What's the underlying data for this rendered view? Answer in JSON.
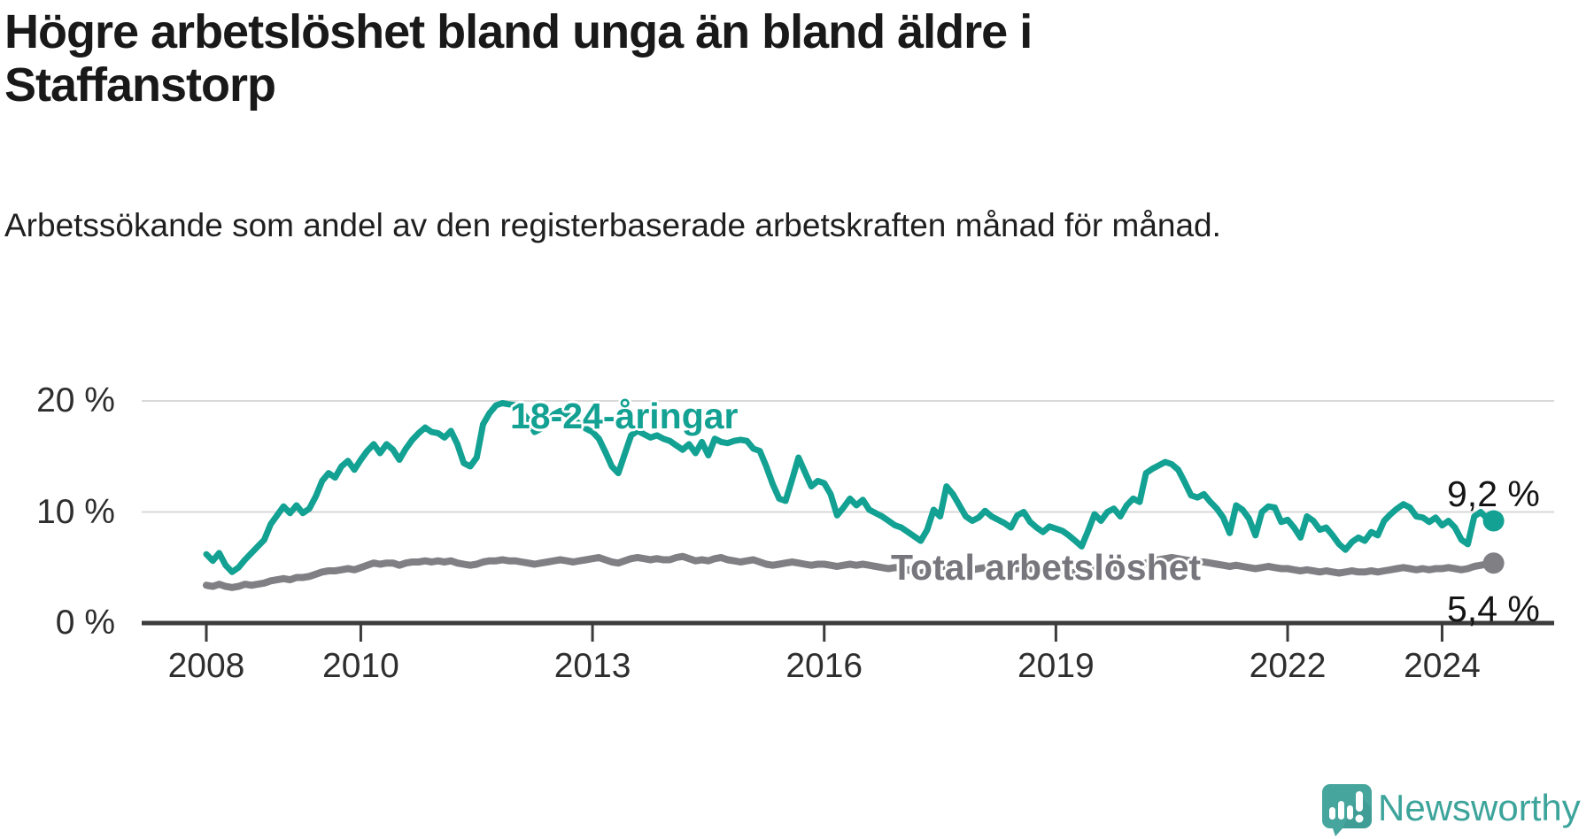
{
  "title": "Högre arbetslöshet bland unga än bland äldre i Staffanstorp",
  "subtitle": "Arbetssökande som andel av den registerbaserade arbetskraften månad för månad.",
  "branding": {
    "logo_text": "Newsworthy",
    "logo_icon": "newsworthy-speech-bubble-chart-icon",
    "logo_color": "#46a69d"
  },
  "colors": {
    "young_series": "#12a192",
    "total_series": "#7f7f84",
    "gridline": "#d9d9d9",
    "axis": "#3b3b3b",
    "text": "#191919"
  },
  "chart_data": {
    "type": "line",
    "title": "Högre arbetslöshet bland unga än bland äldre i Staffanstorp",
    "subtitle": "Arbetssökande som andel av den registerbaserade arbetskraften månad för månad.",
    "unit": "%",
    "grid": "horizontal-only",
    "legend_position": "inline-labels",
    "x_axis": {
      "unit": "month",
      "start": "2008-01",
      "end": "2024-09",
      "tick_years": [
        2008,
        2010,
        2013,
        2016,
        2019,
        2022,
        2024
      ]
    },
    "y_axis": {
      "tick_values": [
        20,
        10,
        0
      ],
      "tick_labels": [
        "20 %",
        "10 %",
        "0 %"
      ],
      "ylim": [
        0,
        22
      ]
    },
    "series": [
      {
        "name": "18-24-åringar",
        "color": "#12a192",
        "end_value": 9.2,
        "end_label": "9,2 %",
        "values": [
          6.2,
          5.6,
          6.3,
          5.2,
          4.6,
          5.0,
          5.7,
          6.3,
          6.9,
          7.5,
          8.9,
          9.7,
          10.5,
          9.9,
          10.6,
          9.9,
          10.3,
          11.4,
          12.8,
          13.5,
          13.1,
          14.1,
          14.6,
          13.8,
          14.7,
          15.5,
          16.1,
          15.3,
          16.1,
          15.6,
          14.7,
          15.7,
          16.5,
          17.1,
          17.6,
          17.2,
          17.1,
          16.7,
          17.3,
          16.1,
          14.4,
          14.1,
          14.9,
          17.9,
          18.9,
          19.6,
          19.8,
          19.7,
          19.6,
          19.0,
          18.3,
          17.2,
          17.5,
          18.2,
          18.8,
          19.1,
          18.8,
          18.4,
          17.9,
          17.5,
          17.2,
          16.6,
          15.4,
          14.1,
          13.5,
          15.2,
          16.9,
          17.3,
          17.0,
          16.7,
          16.9,
          16.6,
          16.4,
          16.0,
          15.6,
          16.1,
          15.3,
          16.3,
          15.1,
          16.6,
          16.3,
          16.2,
          16.4,
          16.5,
          16.4,
          15.7,
          15.5,
          14.1,
          12.5,
          11.2,
          11.0,
          12.9,
          14.9,
          13.6,
          12.3,
          12.8,
          12.6,
          11.6,
          9.7,
          10.4,
          11.2,
          10.6,
          11.1,
          10.2,
          9.9,
          9.6,
          9.2,
          8.8,
          8.6,
          8.2,
          7.8,
          7.4,
          8.4,
          10.2,
          9.6,
          12.3,
          11.6,
          10.6,
          9.6,
          9.2,
          9.5,
          10.1,
          9.6,
          9.3,
          9.0,
          8.6,
          9.7,
          10.0,
          9.1,
          8.6,
          8.2,
          8.7,
          8.5,
          8.3,
          7.9,
          7.4,
          6.9,
          8.3,
          9.8,
          9.2,
          10.0,
          10.3,
          9.6,
          10.6,
          11.2,
          10.9,
          13.5,
          13.9,
          14.2,
          14.5,
          14.3,
          13.8,
          12.7,
          11.5,
          11.3,
          11.6,
          10.9,
          10.3,
          9.5,
          8.1,
          10.6,
          10.2,
          9.4,
          7.9,
          10.0,
          10.5,
          10.4,
          9.1,
          9.3,
          8.6,
          7.7,
          9.6,
          9.2,
          8.4,
          8.6,
          7.9,
          7.1,
          6.6,
          7.3,
          7.7,
          7.4,
          8.2,
          7.9,
          9.2,
          9.8,
          10.3,
          10.7,
          10.4,
          9.6,
          9.5,
          9.1,
          9.5,
          8.8,
          9.2,
          8.6,
          7.5,
          7.1,
          9.6,
          10.0,
          9.4,
          9.2
        ]
      },
      {
        "name": "Total arbetslöshet",
        "color": "#7f7f84",
        "end_value": 5.4,
        "end_label": "5,4 %",
        "values": [
          3.4,
          3.3,
          3.5,
          3.3,
          3.2,
          3.3,
          3.5,
          3.4,
          3.5,
          3.6,
          3.8,
          3.9,
          4.0,
          3.9,
          4.1,
          4.1,
          4.2,
          4.4,
          4.6,
          4.7,
          4.7,
          4.8,
          4.9,
          4.8,
          5.0,
          5.2,
          5.4,
          5.3,
          5.4,
          5.4,
          5.2,
          5.4,
          5.5,
          5.5,
          5.6,
          5.5,
          5.6,
          5.5,
          5.6,
          5.4,
          5.3,
          5.2,
          5.3,
          5.5,
          5.6,
          5.6,
          5.7,
          5.6,
          5.6,
          5.5,
          5.4,
          5.3,
          5.4,
          5.5,
          5.6,
          5.7,
          5.6,
          5.5,
          5.6,
          5.7,
          5.8,
          5.9,
          5.7,
          5.5,
          5.4,
          5.6,
          5.8,
          5.9,
          5.8,
          5.7,
          5.8,
          5.7,
          5.7,
          5.9,
          6.0,
          5.8,
          5.6,
          5.7,
          5.6,
          5.8,
          5.9,
          5.7,
          5.6,
          5.5,
          5.6,
          5.7,
          5.5,
          5.3,
          5.2,
          5.3,
          5.4,
          5.5,
          5.4,
          5.3,
          5.2,
          5.3,
          5.3,
          5.2,
          5.1,
          5.2,
          5.3,
          5.2,
          5.3,
          5.2,
          5.1,
          5.0,
          4.9,
          5.0,
          4.9,
          4.8,
          4.6,
          4.5,
          4.7,
          4.9,
          5.0,
          5.2,
          5.1,
          5.0,
          4.9,
          4.8,
          4.9,
          5.0,
          4.9,
          4.8,
          4.7,
          4.8,
          4.9,
          5.0,
          4.9,
          4.8,
          4.7,
          4.8,
          4.8,
          4.7,
          4.6,
          4.5,
          4.6,
          4.7,
          4.9,
          5.0,
          4.9,
          5.0,
          4.9,
          5.0,
          5.0,
          5.1,
          5.4,
          5.6,
          5.7,
          5.8,
          5.9,
          5.8,
          5.7,
          5.6,
          5.5,
          5.5,
          5.4,
          5.3,
          5.2,
          5.1,
          5.2,
          5.1,
          5.0,
          4.9,
          5.0,
          5.1,
          5.0,
          4.9,
          4.9,
          4.8,
          4.7,
          4.8,
          4.7,
          4.6,
          4.7,
          4.6,
          4.5,
          4.6,
          4.7,
          4.6,
          4.6,
          4.7,
          4.6,
          4.7,
          4.8,
          4.9,
          5.0,
          4.9,
          4.8,
          4.9,
          4.8,
          4.9,
          4.9,
          5.0,
          4.9,
          4.8,
          4.9,
          5.1,
          5.2,
          5.3,
          5.4
        ]
      }
    ]
  }
}
